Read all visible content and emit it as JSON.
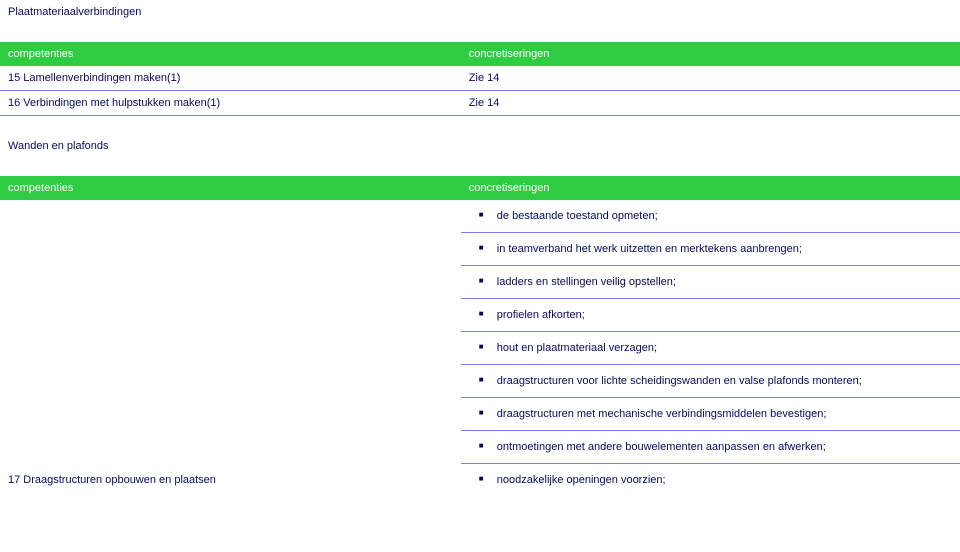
{
  "sections": {
    "plaat": {
      "title": "Plaatmateriaalverbindingen",
      "headers": {
        "left": "competenties",
        "right": "concretiseringen"
      },
      "rows": [
        {
          "left": "15 Lamellenverbindingen maken(1)",
          "right": "Zie 14"
        },
        {
          "left": "16 Verbindingen met hulpstukken maken(1)",
          "right": "Zie 14"
        }
      ]
    },
    "wanden": {
      "title": "Wanden en plafonds",
      "headers": {
        "left": "competenties",
        "right": "concretiseringen"
      },
      "left_item": "17 Draagstructuren opbouwen en plaatsen",
      "bullets": [
        "de bestaande toestand opmeten;",
        "in teamverband het werk uitzetten en merktekens aanbrengen;",
        "ladders en stellingen veilig opstellen;",
        "profielen afkorten;",
        "hout en plaatmateriaal verzagen;",
        "draagstructuren voor lichte scheidingswanden  en valse plafonds monteren;",
        "draagstructuren met mechanische verbindingsmiddelen bevestigen;",
        "ontmoetingen met andere bouwelementen aanpassen en afwerken;",
        "noodzakelijke openingen voorzien;"
      ]
    }
  },
  "colors": {
    "header_bg": "#2ecc40",
    "header_text": "#ffffff",
    "border": "#7a7aff",
    "text": "#0a0a5c",
    "background": "#ffffff"
  }
}
